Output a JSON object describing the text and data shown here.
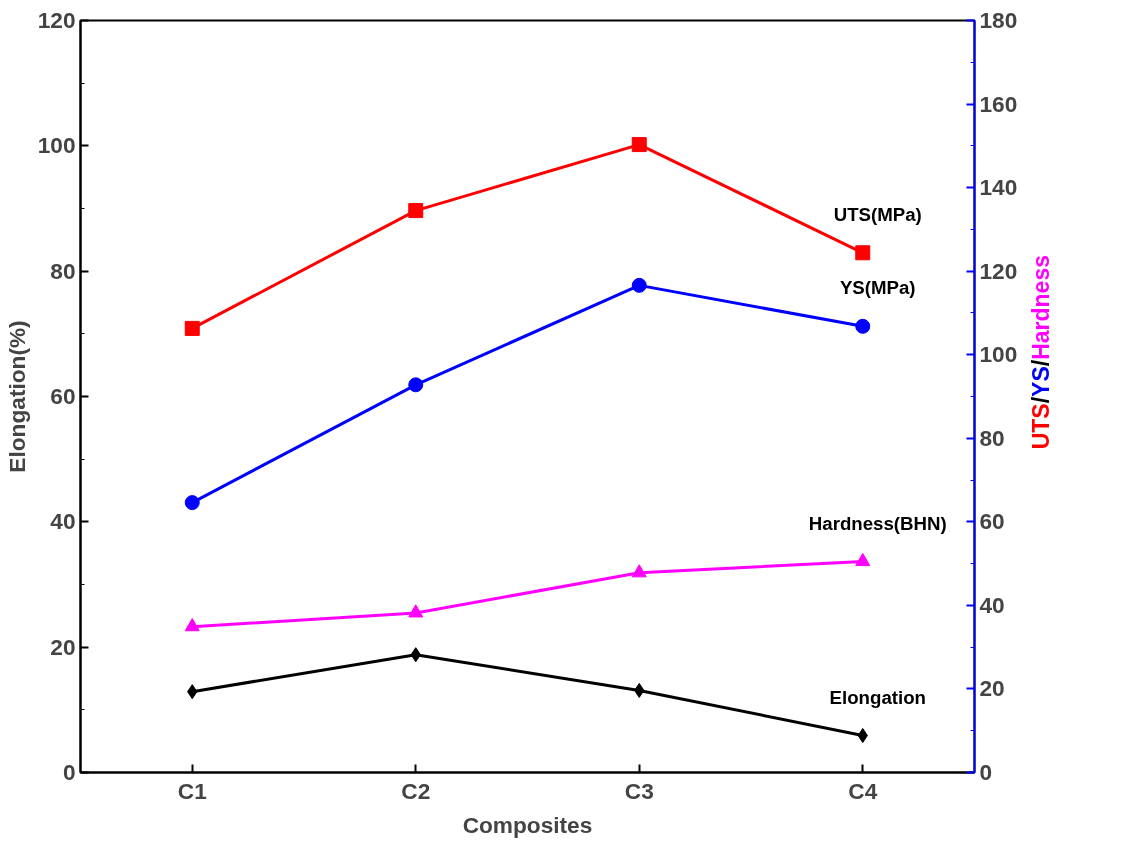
{
  "chart_data": {
    "type": "line",
    "xlabel": "Composites",
    "ylabel": "Elongation(%)",
    "y2label": "UTS/YS/Hardness",
    "categories": [
      "C1",
      "C2",
      "C3",
      "C4"
    ],
    "series": [
      {
        "name": "UTS(MPa)",
        "color": "#ff0000",
        "axis": "y2",
        "marker": "square",
        "values": [
          106.3,
          134.5,
          150.3,
          124.4
        ]
      },
      {
        "name": "YS(MPa)",
        "color": "#0000ff",
        "axis": "y2",
        "marker": "circle",
        "values": [
          64.6,
          92.8,
          116.6,
          106.8
        ]
      },
      {
        "name": "Hardness(BHN)",
        "color": "#ff00ff",
        "axis": "y2",
        "marker": "triangle",
        "values": [
          34.9,
          38.2,
          47.8,
          50.5
        ]
      },
      {
        "name": "Elongation",
        "color": "#000000",
        "marker": "diamond",
        "values": [
          12.9,
          18.8,
          13.1,
          5.9
        ]
      }
    ],
    "ylim": [
      0,
      120
    ],
    "yticks": [
      0,
      20,
      40,
      60,
      80,
      100,
      120
    ],
    "y2lim": [
      0,
      180
    ],
    "y2ticks": [
      0,
      20,
      40,
      60,
      80,
      100,
      120,
      140,
      160,
      180
    ],
    "grid": false,
    "line_style": "solid"
  }
}
